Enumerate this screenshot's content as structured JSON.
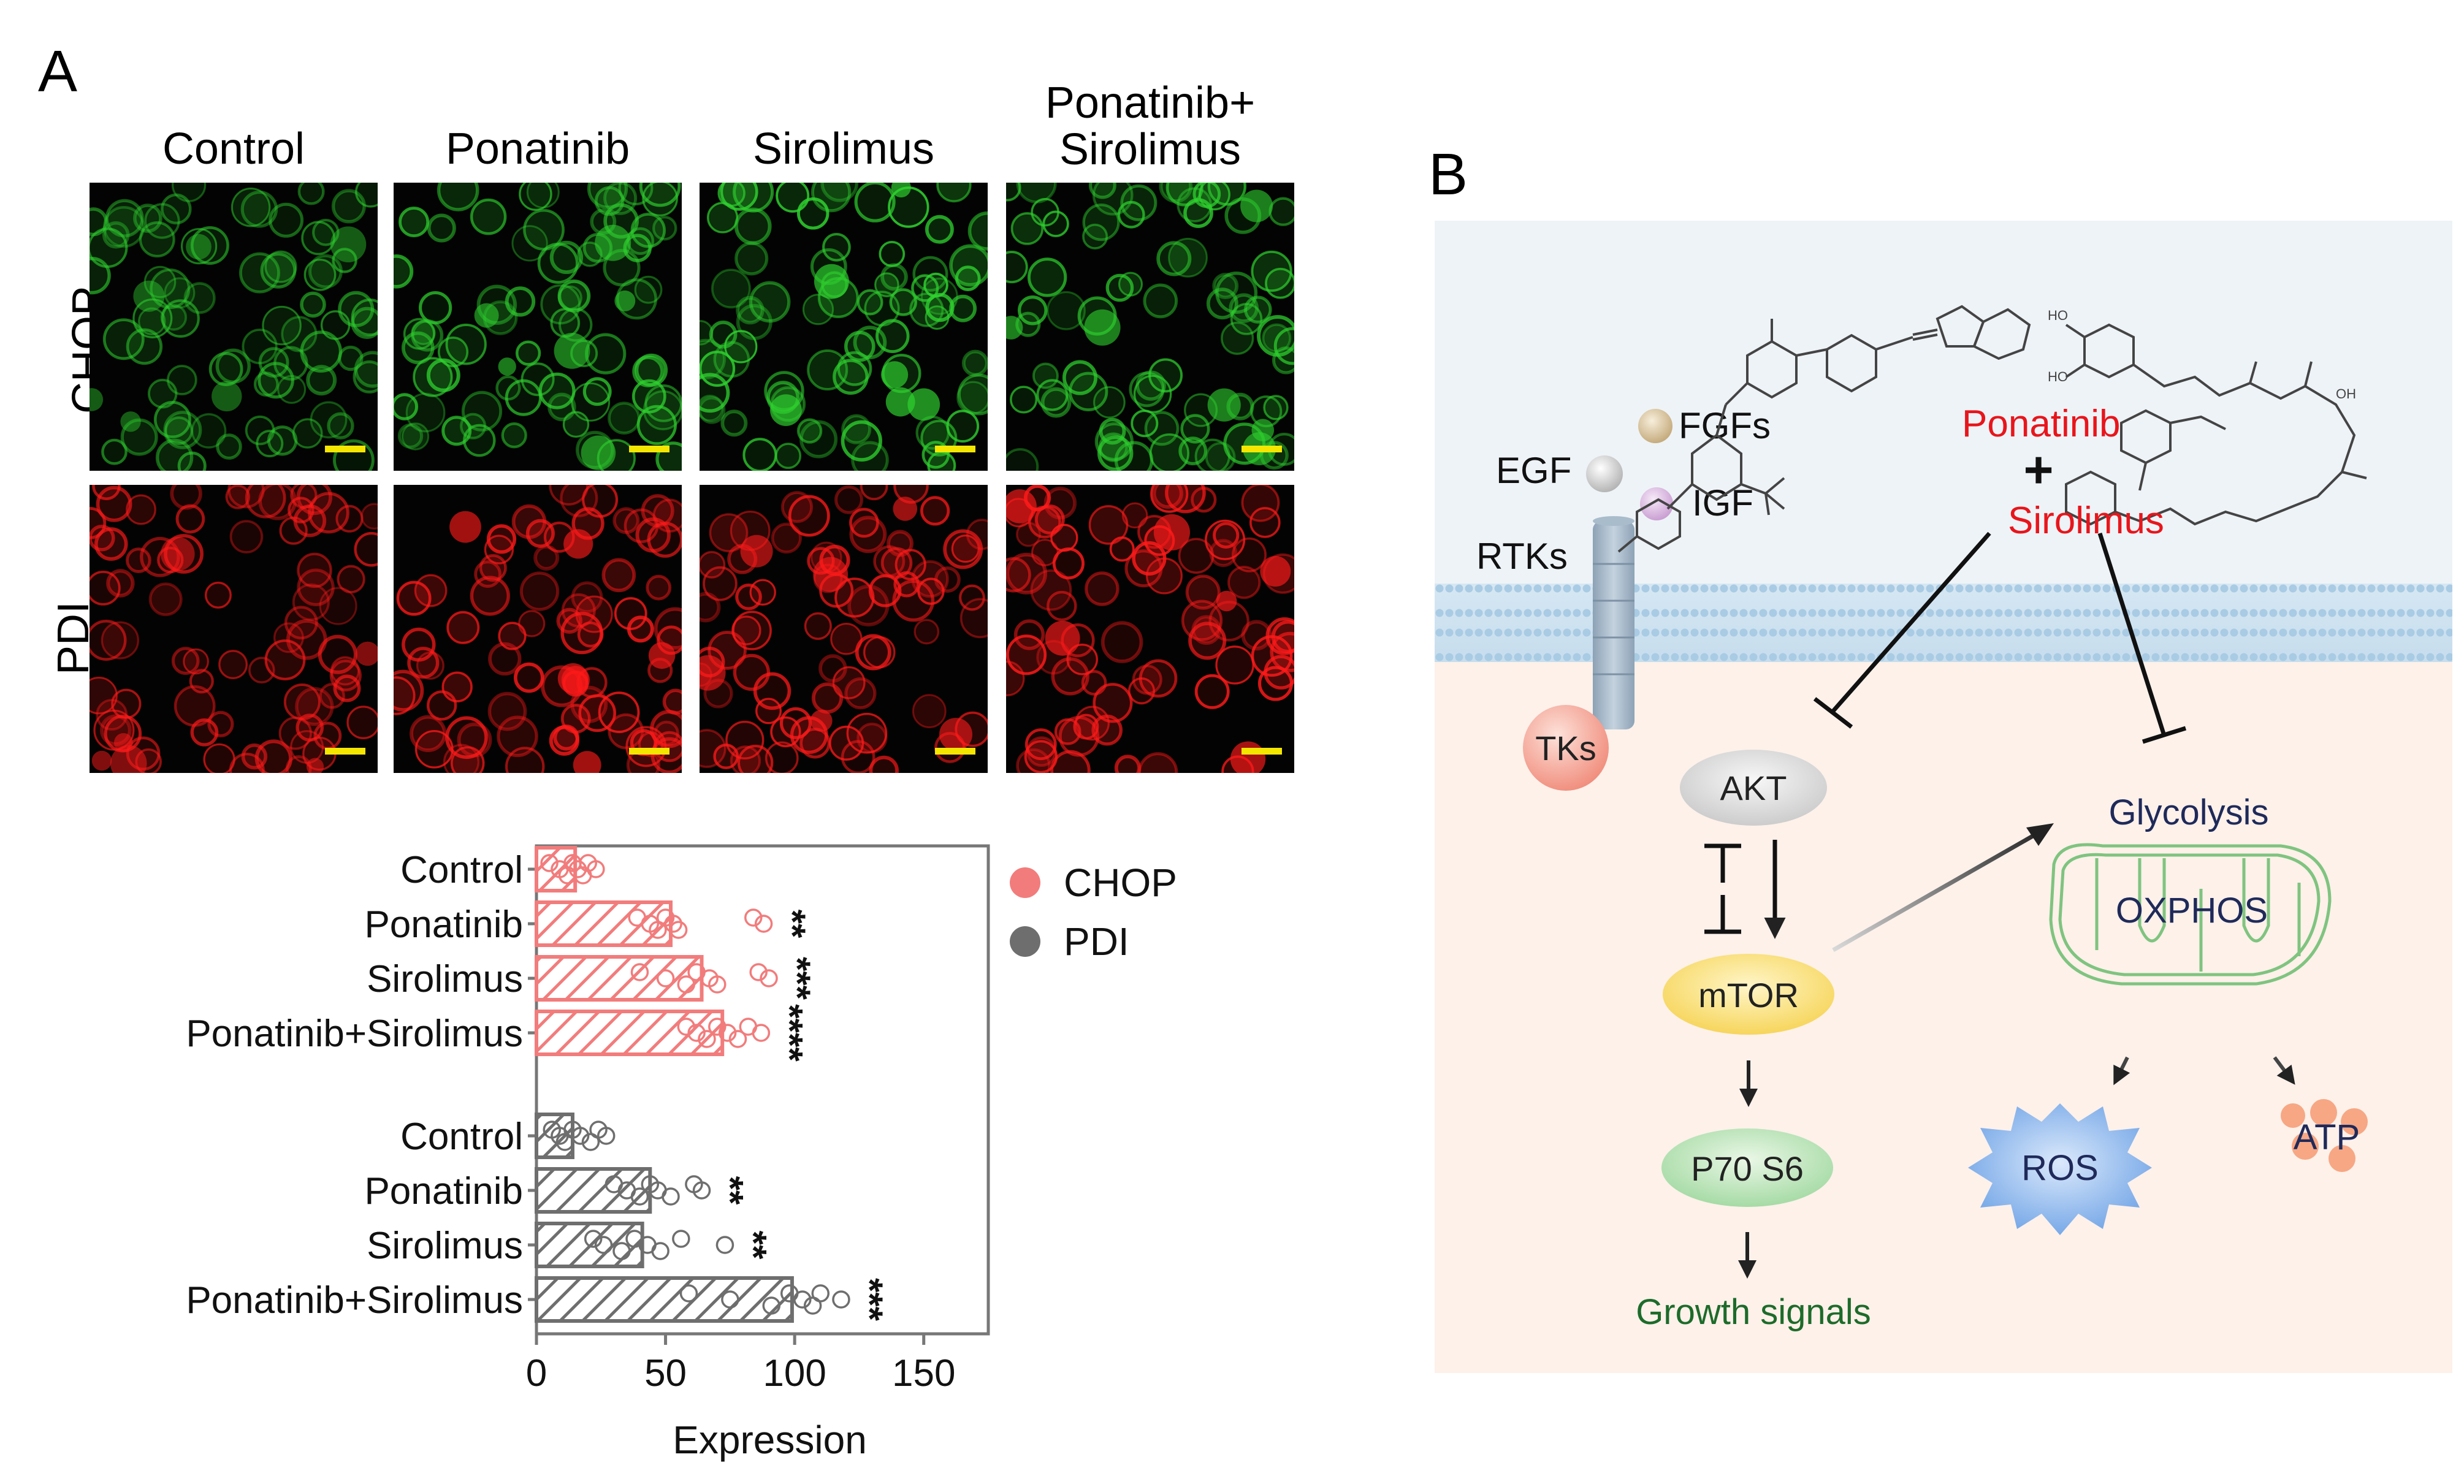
{
  "panel_a": {
    "letter": "A",
    "columns": [
      "Control",
      "Ponatinib",
      "Sirolimus",
      "Ponatinib+\nSirolimus"
    ],
    "column_line1": [
      "Control",
      "Ponatinib",
      "Sirolimus",
      "Ponatinib+"
    ],
    "column_line2": [
      "",
      "",
      "",
      "Sirolimus"
    ],
    "rows": [
      "CHOP",
      "PDI"
    ],
    "colors": {
      "chop_stain": "#2fd12f",
      "pdi_stain": "#ff1a1a",
      "scalebar": "#f5e600"
    }
  },
  "chart_data": {
    "type": "bar",
    "orientation": "horizontal",
    "xlabel": "Expression",
    "xlim": [
      0,
      175
    ],
    "xticks": [
      0,
      50,
      100,
      150
    ],
    "categories": [
      "Control",
      "Ponatinib",
      "Sirolimus",
      "Ponatinib+Sirolimus"
    ],
    "series": [
      {
        "name": "CHOP",
        "color": "#f27c7c",
        "values": [
          15,
          52,
          64,
          72
        ],
        "significance": [
          "",
          "**",
          "***",
          "****"
        ],
        "points": [
          [
            5,
            9,
            12,
            14,
            16,
            18,
            20,
            23
          ],
          [
            39,
            44,
            47,
            50,
            53,
            55,
            84,
            88
          ],
          [
            40,
            50,
            58,
            62,
            67,
            70,
            86,
            90
          ],
          [
            58,
            62,
            66,
            70,
            74,
            78,
            82,
            87
          ]
        ]
      },
      {
        "name": "PDI",
        "color": "#6e6e6e",
        "values": [
          14,
          44,
          41,
          99
        ],
        "significance": [
          "",
          "**",
          "**",
          "***"
        ],
        "points": [
          [
            6,
            9,
            11,
            14,
            17,
            21,
            24,
            27
          ],
          [
            30,
            35,
            40,
            44,
            47,
            52,
            61,
            64
          ],
          [
            22,
            26,
            33,
            38,
            43,
            48,
            56,
            73
          ],
          [
            59,
            75,
            91,
            98,
            103,
            107,
            110,
            118
          ]
        ]
      }
    ],
    "legend": [
      "CHOP",
      "PDI"
    ]
  },
  "panel_b": {
    "letter": "B",
    "labels": {
      "egf": "EGF",
      "fgfs": "FGFs",
      "igf": "IGF",
      "rtks": "RTKs",
      "tks": "TKs",
      "ponatinib": "Ponatinib",
      "plus": "+",
      "sirolimus": "Sirolimus",
      "akt": "AKT",
      "mtor": "mTOR",
      "p70s6": "P70 S6",
      "growth": "Growth signals",
      "glycolysis": "Glycolysis",
      "oxphos": "OXPHOS",
      "ros": "ROS",
      "atp": "ATP",
      "ho1": "HO",
      "ho2": "HO",
      "oh": "OH"
    },
    "colors": {
      "drug_text": "#e8151b",
      "dark_blue_text": "#1f2a5a",
      "growth_text": "#1d6b2a",
      "membrane_top_bg": "#eef3f7",
      "cytoplasm_bg": "#fdf1ea"
    }
  }
}
